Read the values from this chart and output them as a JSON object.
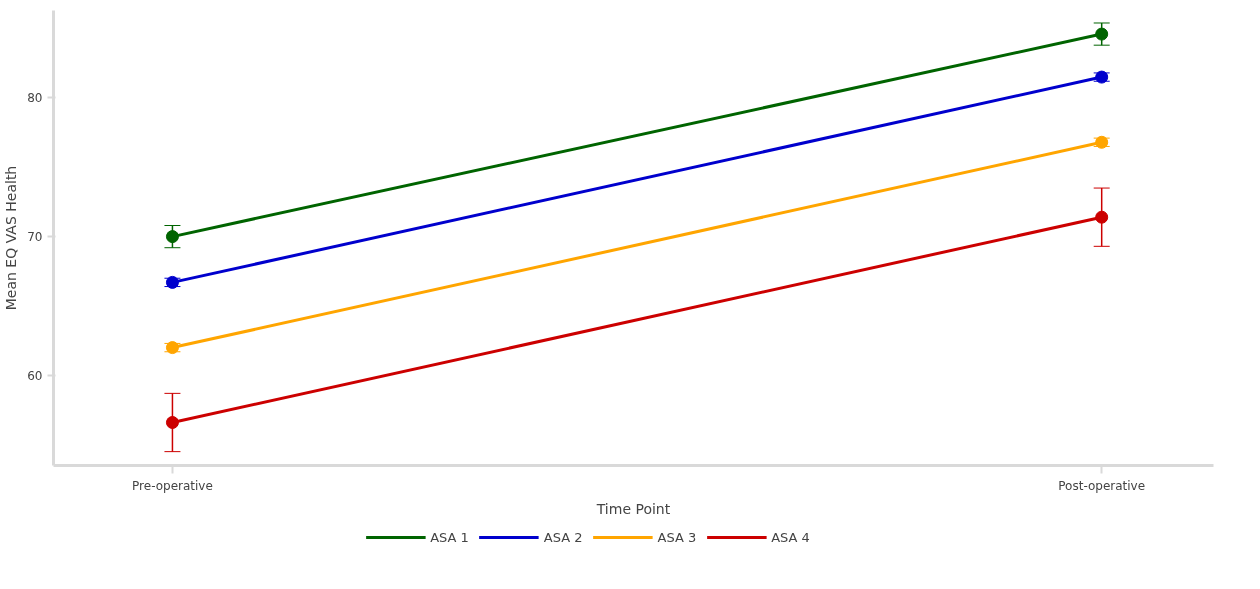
{
  "chart_data": {
    "type": "line",
    "xlabel": "Time Point",
    "ylabel": "Mean EQ VAS Health",
    "categories": [
      "Pre-operative",
      "Post-operative"
    ],
    "series": [
      {
        "name": "ASA 1",
        "color": "#006400",
        "values": [
          70.0,
          84.6
        ],
        "errors": [
          0.8,
          0.8
        ]
      },
      {
        "name": "ASA 2",
        "color": "#0000cd",
        "values": [
          66.7,
          81.5
        ],
        "errors": [
          0.3,
          0.3
        ]
      },
      {
        "name": "ASA 3",
        "color": "#ffa500",
        "values": [
          62.0,
          76.8
        ],
        "errors": [
          0.3,
          0.3
        ]
      },
      {
        "name": "ASA 4",
        "color": "#cc0000",
        "values": [
          56.6,
          71.4
        ],
        "errors": [
          2.1,
          2.1
        ]
      }
    ],
    "ylim": [
      53.5,
      86.3
    ],
    "yticks": [
      60,
      70,
      80
    ],
    "grid": false,
    "legend": "bottom",
    "marker": "circle",
    "line_style": "solid"
  }
}
